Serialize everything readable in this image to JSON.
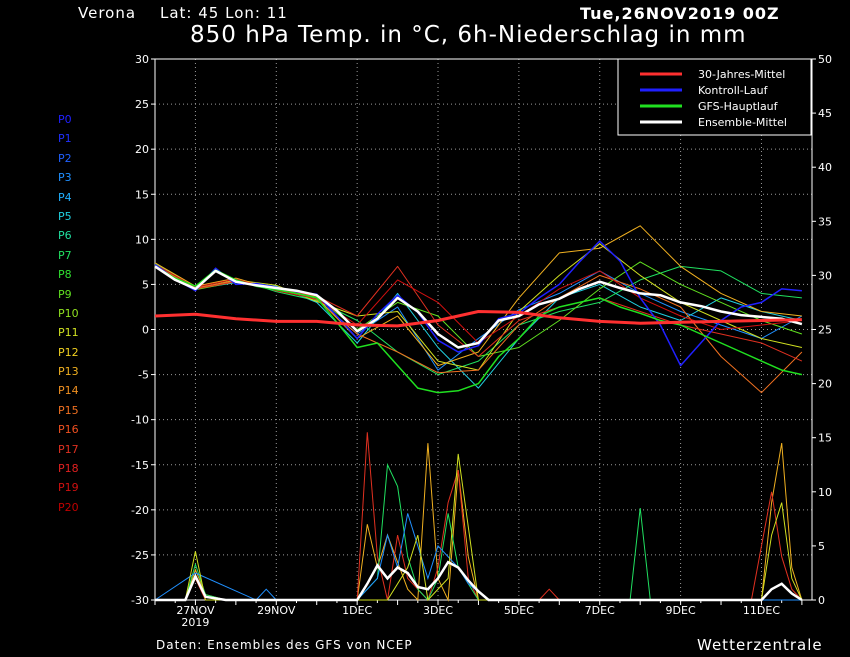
{
  "header": {
    "location": "Verona",
    "latlon": "Lat: 45 Lon: 11",
    "run": "Tue,26NOV2019 00Z",
    "title": "850 hPa Temp. in °C, 6h-Niederschlag in mm"
  },
  "footer": {
    "source": "Daten: Ensembles des GFS von NCEP",
    "brand": "Wetterzentrale"
  },
  "members": [
    {
      "label": "P0",
      "color": "#2020ff"
    },
    {
      "label": "P1",
      "color": "#2030ff"
    },
    {
      "label": "P2",
      "color": "#2060ff"
    },
    {
      "label": "P3",
      "color": "#2090ff"
    },
    {
      "label": "P4",
      "color": "#20b0ff"
    },
    {
      "label": "P5",
      "color": "#20d0e0"
    },
    {
      "label": "P6",
      "color": "#20e0a0"
    },
    {
      "label": "P7",
      "color": "#20e060"
    },
    {
      "label": "P8",
      "color": "#30e030"
    },
    {
      "label": "P9",
      "color": "#60e020"
    },
    {
      "label": "P10",
      "color": "#90e020"
    },
    {
      "label": "P11",
      "color": "#d0e020"
    },
    {
      "label": "P12",
      "color": "#f0d020"
    },
    {
      "label": "P13",
      "color": "#f0b020"
    },
    {
      "label": "P14",
      "color": "#f09020"
    },
    {
      "label": "P15",
      "color": "#f07020"
    },
    {
      "label": "P16",
      "color": "#f05020"
    },
    {
      "label": "P17",
      "color": "#e03020"
    },
    {
      "label": "P18",
      "color": "#e02020"
    },
    {
      "label": "P19",
      "color": "#d01010"
    },
    {
      "label": "P20",
      "color": "#c00000"
    }
  ],
  "chart_data": {
    "type": "line",
    "x_unit": "hours since 26NOV2019 00Z",
    "xlim": [
      0,
      390
    ],
    "x_tick_labels": [
      {
        "x": 24,
        "label": "27NOV",
        "sub": "2019"
      },
      {
        "x": 72,
        "label": "29NOV",
        "sub": ""
      },
      {
        "x": 120,
        "label": "1DEC",
        "sub": ""
      },
      {
        "x": 168,
        "label": "3DEC",
        "sub": ""
      },
      {
        "x": 216,
        "label": "5DEC",
        "sub": ""
      },
      {
        "x": 264,
        "label": "7DEC",
        "sub": ""
      },
      {
        "x": 312,
        "label": "9DEC",
        "sub": ""
      },
      {
        "x": 360,
        "label": "11DEC",
        "sub": ""
      }
    ],
    "y_left": {
      "lim": [
        -30,
        30
      ],
      "ticks": [
        30,
        25,
        20,
        15,
        10,
        5,
        0,
        -5,
        -10,
        -15,
        -20,
        -25,
        -30
      ]
    },
    "y_right": {
      "lim": [
        0,
        50
      ],
      "ticks": [
        50,
        45,
        40,
        35,
        30,
        25,
        20,
        15,
        10,
        5,
        0
      ]
    },
    "grid": true,
    "legend_position": "top-right",
    "legend": [
      {
        "name": "30-Jahres-Mittel",
        "color": "#ff3030"
      },
      {
        "name": "Kontroll-Lauf",
        "color": "#2020ff"
      },
      {
        "name": "GFS-Hauptlauf",
        "color": "#20e020"
      },
      {
        "name": "Ensemble-Mittel",
        "color": "#ffffff"
      }
    ],
    "temperature_series": [
      {
        "name": "30-Jahres-Mittel",
        "color": "#ff3030",
        "width": 3,
        "x": [
          0,
          24,
          48,
          72,
          96,
          120,
          144,
          168,
          192,
          216,
          240,
          264,
          288,
          312,
          336,
          360,
          384
        ],
        "y": [
          1.5,
          1.7,
          1.2,
          0.9,
          0.9,
          0.5,
          0.4,
          1.0,
          2.0,
          1.9,
          1.3,
          0.9,
          0.7,
          0.8,
          0.9,
          1.0,
          1.1
        ]
      },
      {
        "name": "Ensemble-Mittel",
        "color": "#ffffff",
        "width": 2.5,
        "x": [
          0,
          12,
          24,
          36,
          48,
          60,
          72,
          84,
          96,
          108,
          120,
          132,
          144,
          156,
          168,
          180,
          192,
          204,
          216,
          228,
          240,
          252,
          264,
          276,
          288,
          300,
          312,
          324,
          336,
          348,
          360,
          372,
          384
        ],
        "y": [
          7.0,
          5.5,
          4.5,
          6.5,
          5.3,
          4.9,
          4.6,
          4.3,
          3.8,
          2.1,
          -0.2,
          1.2,
          3.5,
          2.0,
          -0.5,
          -2.0,
          -1.5,
          1.0,
          1.5,
          2.8,
          3.4,
          4.5,
          5.3,
          4.6,
          4.0,
          3.8,
          3.0,
          2.6,
          2.0,
          1.6,
          1.4,
          1.2,
          0.6
        ]
      },
      {
        "name": "Kontroll-Lauf",
        "color": "#2020ff",
        "width": 1.5,
        "x": [
          0,
          12,
          24,
          36,
          48,
          60,
          72,
          84,
          96,
          108,
          120,
          132,
          144,
          156,
          168,
          180,
          192,
          204,
          216,
          228,
          240,
          252,
          264,
          276,
          288,
          300,
          312,
          324,
          336,
          348,
          360,
          372,
          384
        ],
        "y": [
          7.2,
          5.6,
          4.3,
          6.8,
          5.0,
          5.1,
          4.7,
          4.2,
          3.9,
          1.5,
          -1.0,
          1.7,
          3.8,
          1.9,
          -1.2,
          -2.5,
          -1.8,
          1.2,
          1.8,
          3.5,
          5.0,
          7.5,
          9.8,
          7.6,
          3.5,
          0.5,
          -4.0,
          -1.5,
          1.0,
          2.5,
          3.0,
          4.5,
          4.3
        ]
      },
      {
        "name": "GFS-Hauptlauf",
        "color": "#20e020",
        "width": 1.5,
        "x": [
          0,
          12,
          24,
          36,
          48,
          60,
          72,
          84,
          96,
          108,
          120,
          132,
          144,
          156,
          168,
          180,
          192,
          204,
          216,
          228,
          240,
          252,
          264,
          276,
          288,
          300,
          312,
          324,
          336,
          348,
          360,
          372,
          384
        ],
        "y": [
          7.0,
          5.7,
          4.8,
          6.6,
          5.5,
          4.8,
          4.4,
          4.0,
          3.5,
          0.8,
          -2.0,
          -1.5,
          -4.0,
          -6.5,
          -7.0,
          -6.8,
          -6.0,
          -3.0,
          -1.0,
          1.5,
          2.5,
          3.0,
          3.5,
          2.5,
          1.8,
          1.0,
          0.5,
          -0.5,
          -1.5,
          -2.5,
          -3.5,
          -4.5,
          -5.0
        ]
      },
      {
        "name": "P3",
        "color": "#2090ff",
        "width": 1,
        "x": [
          0,
          24,
          48,
          72,
          96,
          120,
          144,
          168,
          192,
          216,
          240,
          264,
          288,
          312,
          336,
          360,
          384
        ],
        "y": [
          7.1,
          4.6,
          5.4,
          4.5,
          3.4,
          -0.5,
          2.5,
          -4.5,
          -1.0,
          2.2,
          4.0,
          6.5,
          4.0,
          2.0,
          0.5,
          -1.0,
          1.5
        ]
      },
      {
        "name": "P5",
        "color": "#20d0e0",
        "width": 1,
        "x": [
          0,
          24,
          48,
          72,
          96,
          120,
          144,
          168,
          192,
          216,
          240,
          264,
          288,
          312,
          336,
          360,
          384
        ],
        "y": [
          7.0,
          4.5,
          5.2,
          4.8,
          3.0,
          -1.5,
          4.0,
          -2.0,
          -6.5,
          -1.0,
          3.5,
          5.0,
          2.5,
          1.0,
          3.5,
          2.0,
          1.0
        ]
      },
      {
        "name": "P7",
        "color": "#20e060",
        "width": 1,
        "x": [
          0,
          24,
          48,
          72,
          96,
          120,
          144,
          168,
          192,
          216,
          240,
          264,
          288,
          312,
          336,
          360,
          384
        ],
        "y": [
          7.3,
          4.7,
          5.6,
          4.2,
          3.2,
          1.0,
          -2.5,
          -5.0,
          -3.5,
          0.5,
          2.0,
          3.0,
          5.5,
          7.0,
          6.5,
          4.0,
          3.5
        ]
      },
      {
        "name": "P9",
        "color": "#60e020",
        "width": 1,
        "x": [
          0,
          24,
          48,
          72,
          96,
          120,
          144,
          168,
          192,
          216,
          240,
          264,
          288,
          312,
          336,
          360,
          384
        ],
        "y": [
          7.0,
          4.4,
          5.3,
          4.6,
          3.6,
          0.0,
          3.0,
          1.5,
          -3.0,
          -2.0,
          1.0,
          4.5,
          7.5,
          5.0,
          3.0,
          1.0,
          -0.5
        ]
      },
      {
        "name": "P11",
        "color": "#d0e020",
        "width": 1,
        "x": [
          0,
          24,
          48,
          72,
          96,
          120,
          144,
          168,
          192,
          216,
          240,
          264,
          288,
          312,
          336,
          360,
          384
        ],
        "y": [
          7.2,
          4.5,
          5.5,
          4.9,
          3.1,
          1.5,
          2.0,
          -3.5,
          -4.5,
          2.0,
          6.0,
          9.5,
          6.0,
          3.0,
          1.0,
          -1.0,
          -2.0
        ]
      },
      {
        "name": "P13",
        "color": "#f0b020",
        "width": 1,
        "x": [
          0,
          24,
          48,
          72,
          96,
          120,
          144,
          168,
          192,
          216,
          240,
          264,
          288,
          312,
          336,
          360,
          384
        ],
        "y": [
          7.4,
          4.8,
          5.7,
          4.4,
          3.5,
          -1.0,
          1.5,
          -4.0,
          -2.5,
          3.5,
          8.5,
          9.0,
          11.5,
          7.0,
          4.0,
          2.0,
          1.5
        ]
      },
      {
        "name": "P15",
        "color": "#f07020",
        "width": 1,
        "x": [
          0,
          24,
          48,
          72,
          96,
          120,
          144,
          168,
          192,
          216,
          240,
          264,
          288,
          312,
          336,
          360,
          384
        ],
        "y": [
          7.1,
          4.6,
          5.4,
          4.7,
          3.3,
          -0.5,
          -2.5,
          -4.8,
          -4.5,
          0.5,
          3.5,
          6.0,
          4.5,
          2.5,
          -3.0,
          -7.0,
          -2.5
        ]
      },
      {
        "name": "P17",
        "color": "#e03020",
        "width": 1,
        "x": [
          0,
          24,
          48,
          72,
          96,
          120,
          144,
          168,
          192,
          216,
          240,
          264,
          288,
          312,
          336,
          360,
          384
        ],
        "y": [
          7.0,
          4.5,
          5.3,
          4.5,
          3.7,
          1.5,
          7.0,
          0.5,
          -3.0,
          1.0,
          2.5,
          3.5,
          2.0,
          0.5,
          -0.5,
          -1.5,
          -3.5
        ]
      },
      {
        "name": "P19",
        "color": "#d01010",
        "width": 1,
        "x": [
          0,
          24,
          48,
          72,
          96,
          120,
          144,
          168,
          192,
          216,
          240,
          264,
          288,
          312,
          336,
          360,
          384
        ],
        "y": [
          7.2,
          4.7,
          5.6,
          4.3,
          3.4,
          0.5,
          5.5,
          3.0,
          -1.5,
          1.5,
          4.5,
          6.5,
          3.5,
          1.5,
          0.0,
          0.5,
          1.0
        ]
      }
    ],
    "precipitation_series": [
      {
        "name": "P13",
        "color": "#f0b020",
        "x": [
          0,
          18,
          24,
          30,
          42,
          120,
          126,
          132,
          138,
          150,
          156,
          162,
          168,
          174,
          180,
          186,
          192,
          222,
          228,
          360,
          366,
          372,
          378,
          384
        ],
        "y": [
          0,
          0,
          2.8,
          0.5,
          0,
          0,
          7.0,
          3.0,
          6.0,
          1.0,
          0,
          14.5,
          2.0,
          0,
          12.0,
          4.0,
          0,
          0,
          0,
          0,
          9.0,
          14.5,
          3.0,
          0
        ]
      },
      {
        "name": "P17",
        "color": "#e03020",
        "x": [
          0,
          18,
          24,
          30,
          42,
          120,
          126,
          132,
          138,
          144,
          150,
          162,
          168,
          174,
          180,
          186,
          192,
          228,
          234,
          240,
          354,
          360,
          366,
          372,
          378,
          384
        ],
        "y": [
          0,
          0,
          2.0,
          0,
          0,
          0,
          15.5,
          4.0,
          0,
          6.0,
          2.0,
          0,
          3.0,
          9.0,
          12.0,
          2.0,
          0,
          0,
          1.0,
          0,
          0,
          5.0,
          10.0,
          4.0,
          1.0,
          0
        ]
      },
      {
        "name": "P7",
        "color": "#20e060",
        "x": [
          0,
          18,
          24,
          30,
          42,
          120,
          132,
          138,
          144,
          150,
          156,
          162,
          168,
          174,
          180,
          192,
          282,
          288,
          294,
          384
        ],
        "y": [
          0,
          0,
          3.3,
          0.5,
          0,
          0,
          2.0,
          12.5,
          10.5,
          4.0,
          1.0,
          0,
          2.0,
          8.0,
          3.0,
          0,
          0,
          8.5,
          0,
          0
        ]
      },
      {
        "name": "P3",
        "color": "#2090ff",
        "x": [
          0,
          24,
          60,
          66,
          72,
          120,
          132,
          138,
          144,
          150,
          162,
          168,
          180,
          186,
          198,
          384
        ],
        "y": [
          0,
          2.5,
          0,
          1.0,
          0,
          0,
          2.0,
          6.0,
          3.0,
          8.0,
          2.0,
          5.0,
          3.0,
          1.5,
          0,
          0
        ]
      },
      {
        "name": "P11",
        "color": "#d0e020",
        "x": [
          0,
          18,
          24,
          30,
          42,
          120,
          138,
          150,
          156,
          162,
          174,
          180,
          192,
          360,
          366,
          372,
          378,
          384
        ],
        "y": [
          0,
          0,
          4.5,
          0,
          0,
          0,
          0,
          3.0,
          6.0,
          0,
          2.0,
          13.5,
          0,
          0,
          6.0,
          9.0,
          2.0,
          0
        ]
      },
      {
        "name": "Ensemble-Mittel",
        "color": "#ffffff",
        "x": [
          0,
          18,
          24,
          30,
          42,
          120,
          126,
          132,
          138,
          144,
          150,
          156,
          162,
          168,
          174,
          180,
          186,
          192,
          198,
          216,
          264,
          360,
          366,
          372,
          378,
          384
        ],
        "y": [
          0,
          0,
          2.2,
          0.3,
          0,
          0,
          1.5,
          3.2,
          2.0,
          3.0,
          2.5,
          1.2,
          1.0,
          2.0,
          3.5,
          3.0,
          1.8,
          0.8,
          0,
          0,
          0,
          0,
          1.0,
          1.5,
          0.6,
          0
        ]
      }
    ]
  }
}
